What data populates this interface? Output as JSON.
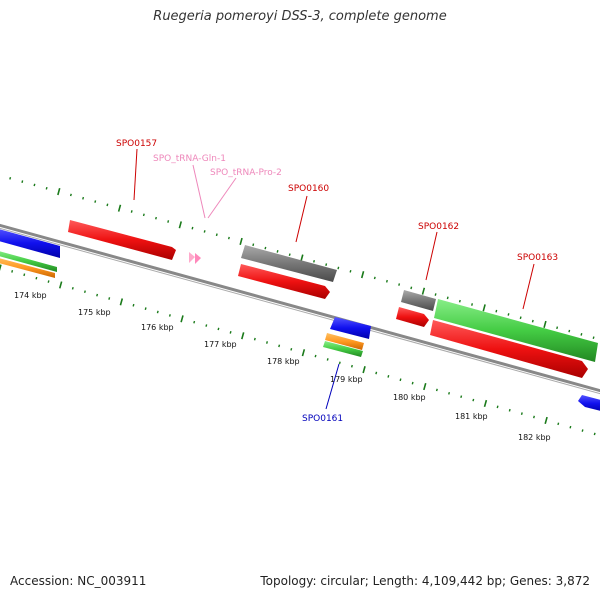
{
  "title": "Ruegeria pomeroyi DSS-3, complete genome",
  "footer": {
    "accession": "Accession: NC_003911",
    "summary": "Topology: circular; Length: 4,109,442 bp; Genes: 3,872"
  },
  "scale_labels": [
    "174 kbp",
    "175 kbp",
    "176 kbp",
    "177 kbp",
    "178 kbp",
    "179 kbp",
    "180 kbp",
    "181 kbp",
    "182 kbp"
  ],
  "gene_labels": [
    {
      "text": "SPO0157",
      "color": "#cc0000"
    },
    {
      "text": "SPO_tRNA-Gln-1",
      "color": "#ee88bb"
    },
    {
      "text": "SPO_tRNA-Pro-2",
      "color": "#ee88bb"
    },
    {
      "text": "SPO0160",
      "color": "#cc0000"
    },
    {
      "text": "SPO0161",
      "color": "#0000bb"
    },
    {
      "text": "SPO0162",
      "color": "#cc0000"
    },
    {
      "text": "SPO0163",
      "color": "#cc0000"
    }
  ],
  "colors": {
    "backbone": "#888888",
    "cds": "#ee1111",
    "gene": "#777777",
    "rrna": "#1111ee",
    "trna": "#ffaacc",
    "green": "#44cc44",
    "orange": "#ff9922",
    "tick": "#1a7a1a"
  }
}
